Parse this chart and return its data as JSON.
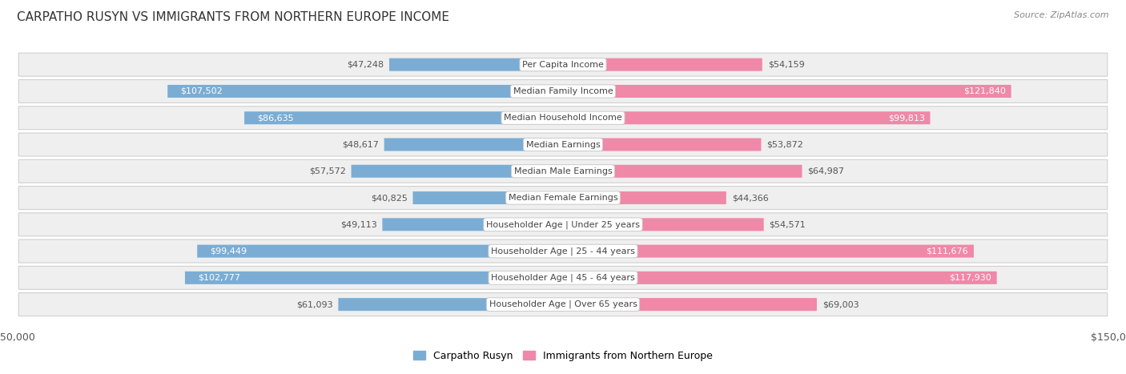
{
  "title": "CARPATHO RUSYN VS IMMIGRANTS FROM NORTHERN EUROPE INCOME",
  "source": "Source: ZipAtlas.com",
  "categories": [
    "Per Capita Income",
    "Median Family Income",
    "Median Household Income",
    "Median Earnings",
    "Median Male Earnings",
    "Median Female Earnings",
    "Householder Age | Under 25 years",
    "Householder Age | 25 - 44 years",
    "Householder Age | 45 - 64 years",
    "Householder Age | Over 65 years"
  ],
  "carpatho_values": [
    47248,
    107502,
    86635,
    48617,
    57572,
    40825,
    49113,
    99449,
    102777,
    61093
  ],
  "northern_values": [
    54159,
    121840,
    99813,
    53872,
    64987,
    44366,
    54571,
    111676,
    117930,
    69003
  ],
  "carpatho_labels": [
    "$47,248",
    "$107,502",
    "$86,635",
    "$48,617",
    "$57,572",
    "$40,825",
    "$49,113",
    "$99,449",
    "$102,777",
    "$61,093"
  ],
  "northern_labels": [
    "$54,159",
    "$121,840",
    "$99,813",
    "$53,872",
    "$64,987",
    "$44,366",
    "$54,571",
    "$111,676",
    "$117,930",
    "$69,003"
  ],
  "carpatho_color": "#7badd4",
  "northern_color": "#f088a8",
  "max_val": 150000,
  "legend_carpatho": "Carpatho Rusyn",
  "legend_northern": "Immigrants from Northern Europe",
  "row_bg_color": "#efefef",
  "label_inside_threshold": 75000,
  "title_fontsize": 11,
  "source_fontsize": 8,
  "label_fontsize": 8,
  "cat_fontsize": 8
}
